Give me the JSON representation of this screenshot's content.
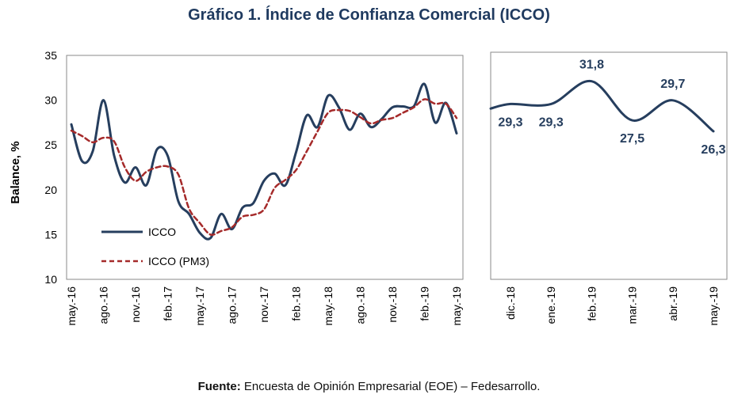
{
  "title": "Gráfico 1. Índice de Confianza Comercial (ICCO)",
  "source": {
    "label": "Fuente:",
    "text": " Encuesta de Opinión Empresarial (EOE) – Fedesarrollo."
  },
  "colors": {
    "icco_line": "#263e5e",
    "pm3_line": "#a52a2a",
    "text": "#000000",
    "title": "#1f3a5f",
    "label": "#263e5e",
    "frame": "#8a8a8a"
  },
  "chart_data": [
    {
      "type": "line",
      "ylabel": "Balance, %",
      "ylim": [
        10,
        35
      ],
      "yticks": [
        10,
        15,
        20,
        25,
        30,
        35
      ],
      "x_tick_labels": [
        "may.-16",
        "ago.-16",
        "nov.-16",
        "feb.-17",
        "may.-17",
        "ago.-17",
        "nov.-17",
        "feb.-18",
        "may.-18",
        "ago.-18",
        "nov.-18",
        "feb.-19",
        "may.-19"
      ],
      "x": [
        "may.-16",
        "jun.-16",
        "jul.-16",
        "ago.-16",
        "sep.-16",
        "oct.-16",
        "nov.-16",
        "dic.-16",
        "ene.-17",
        "feb.-17",
        "mar.-17",
        "abr.-17",
        "may.-17",
        "jun.-17",
        "jul.-17",
        "ago.-17",
        "sep.-17",
        "oct.-17",
        "nov.-17",
        "dic.-17",
        "ene.-18",
        "feb.-18",
        "mar.-18",
        "abr.-18",
        "may.-18",
        "jun.-18",
        "jul.-18",
        "ago.-18",
        "sep.-18",
        "oct.-18",
        "nov.-18",
        "dic.-18",
        "ene.-19",
        "feb.-19",
        "mar.-19",
        "abr.-19",
        "may.-19"
      ],
      "legend_position": "bottom-left",
      "series": [
        {
          "name": "ICCO",
          "style": "solid",
          "values": [
            27.3,
            23.2,
            24.3,
            30.0,
            23.8,
            20.8,
            22.5,
            20.5,
            24.5,
            23.8,
            18.7,
            17.3,
            15.2,
            14.6,
            17.3,
            15.6,
            18.0,
            18.5,
            21.0,
            21.8,
            20.5,
            24.2,
            28.3,
            27.0,
            30.5,
            29.2,
            26.7,
            28.5,
            27.0,
            27.9,
            29.2,
            29.3,
            29.3,
            31.8,
            27.5,
            29.7,
            26.3
          ]
        },
        {
          "name": "ICCO (PM3)",
          "style": "dashed",
          "values": [
            26.6,
            26.0,
            25.3,
            25.8,
            25.4,
            22.5,
            21.0,
            22.0,
            22.5,
            22.6,
            21.7,
            17.9,
            16.3,
            15.0,
            15.4,
            15.8,
            17.0,
            17.2,
            17.8,
            20.2,
            21.1,
            22.2,
            24.3,
            26.5,
            28.6,
            28.9,
            28.8,
            28.1,
            27.4,
            27.8,
            28.0,
            28.6,
            29.2,
            30.1,
            29.6,
            29.6,
            28.0
          ]
        }
      ]
    },
    {
      "type": "line",
      "categories": [
        "dic.-18",
        "ene.-19",
        "feb.-19",
        "mar.-19",
        "abr.-19",
        "may.-19"
      ],
      "values": [
        29.3,
        29.3,
        31.8,
        27.5,
        29.7,
        26.3
      ],
      "labels": [
        "29,3",
        "29,3",
        "31,8",
        "27,5",
        "29,7",
        "26,3"
      ],
      "ylim": [
        10,
        35
      ]
    }
  ]
}
